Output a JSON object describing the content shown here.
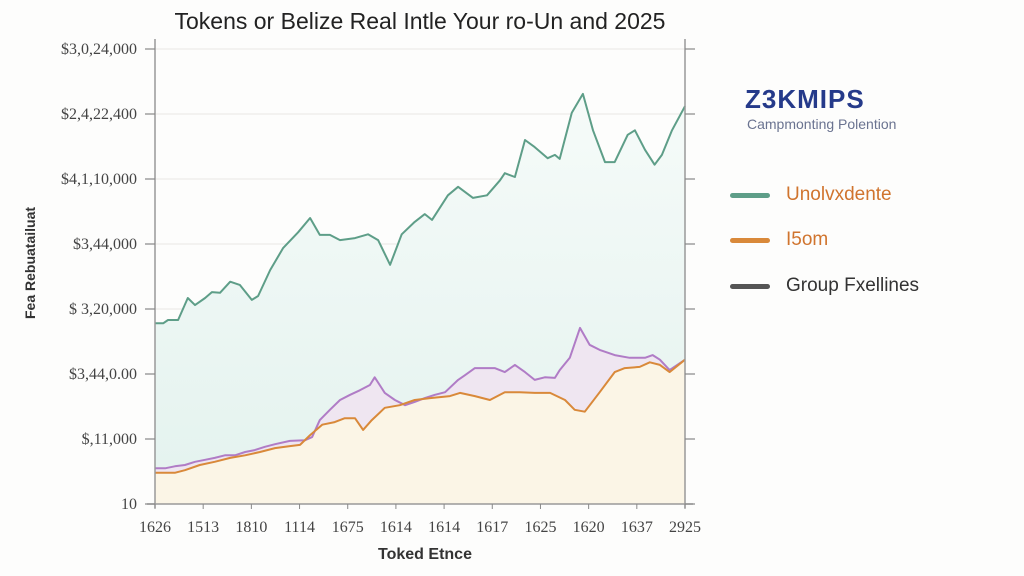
{
  "chart_data": {
    "type": "area",
    "title": "Tokens or Belize Real Intle Your ro-Un and 2025",
    "xlabel": "Toked Etnce",
    "ylabel": "Fea Rebuatailuat",
    "x_tick_labels": [
      "1626",
      "1513",
      "1810",
      "1114",
      "1675",
      "1614",
      "1614",
      "1617",
      "1625",
      "1620",
      "1637",
      "2925"
    ],
    "y_tick_labels": [
      "10",
      "$,11,000",
      "$3,44,0.00",
      "$ 3,20,000",
      "$3,44,000",
      "$4,1,10,000",
      "$2,4,22,400",
      "$3,0,24,000"
    ],
    "xlim": [
      0,
      11
    ],
    "ylim": [
      0,
      7
    ],
    "grid": true,
    "legend_placement": "right",
    "series": [
      {
        "name": "Unolvxdente",
        "color": "#5e9e88",
        "fill": "#e3f2ee",
        "points": [
          [
            0,
            2.78
          ],
          [
            0.17,
            2.78
          ],
          [
            0.27,
            2.83
          ],
          [
            0.48,
            2.83
          ],
          [
            0.68,
            3.17
          ],
          [
            0.83,
            3.06
          ],
          [
            1.04,
            3.17
          ],
          [
            1.18,
            3.26
          ],
          [
            1.35,
            3.25
          ],
          [
            1.56,
            3.42
          ],
          [
            1.76,
            3.37
          ],
          [
            2.01,
            3.14
          ],
          [
            2.14,
            3.2
          ],
          [
            2.39,
            3.6
          ],
          [
            2.66,
            3.94
          ],
          [
            2.97,
            4.18
          ],
          [
            3.22,
            4.4
          ],
          [
            3.42,
            4.14
          ],
          [
            3.63,
            4.14
          ],
          [
            3.84,
            4.06
          ],
          [
            4.15,
            4.09
          ],
          [
            4.42,
            4.15
          ],
          [
            4.63,
            4.06
          ],
          [
            4.88,
            3.68
          ],
          [
            5.12,
            4.15
          ],
          [
            5.39,
            4.34
          ],
          [
            5.6,
            4.46
          ],
          [
            5.75,
            4.37
          ],
          [
            6.08,
            4.75
          ],
          [
            6.29,
            4.88
          ],
          [
            6.6,
            4.71
          ],
          [
            6.89,
            4.75
          ],
          [
            7.16,
            4.98
          ],
          [
            7.26,
            5.09
          ],
          [
            7.47,
            5.03
          ],
          [
            7.68,
            5.6
          ],
          [
            7.88,
            5.49
          ],
          [
            8.15,
            5.32
          ],
          [
            8.3,
            5.37
          ],
          [
            8.4,
            5.31
          ],
          [
            8.65,
            6.02
          ],
          [
            8.88,
            6.31
          ],
          [
            9.09,
            5.75
          ],
          [
            9.34,
            5.26
          ],
          [
            9.54,
            5.26
          ],
          [
            9.81,
            5.68
          ],
          [
            9.96,
            5.75
          ],
          [
            10.17,
            5.45
          ],
          [
            10.37,
            5.22
          ],
          [
            10.52,
            5.37
          ],
          [
            10.73,
            5.75
          ],
          [
            11,
            6.12
          ]
        ]
      },
      {
        "name": "I5om",
        "color": "#d9893a",
        "fill": "#fbf5e6",
        "points": [
          [
            0,
            0.48
          ],
          [
            0.41,
            0.48
          ],
          [
            0.62,
            0.52
          ],
          [
            0.93,
            0.6
          ],
          [
            1.24,
            0.65
          ],
          [
            1.56,
            0.71
          ],
          [
            1.87,
            0.75
          ],
          [
            2.18,
            0.8
          ],
          [
            2.49,
            0.86
          ],
          [
            2.8,
            0.89
          ],
          [
            3.01,
            0.91
          ],
          [
            3.22,
            1.06
          ],
          [
            3.47,
            1.22
          ],
          [
            3.73,
            1.26
          ],
          [
            3.94,
            1.32
          ],
          [
            4.15,
            1.32
          ],
          [
            4.32,
            1.14
          ],
          [
            4.5,
            1.29
          ],
          [
            4.77,
            1.48
          ],
          [
            5.08,
            1.52
          ],
          [
            5.39,
            1.6
          ],
          [
            5.71,
            1.63
          ],
          [
            6.12,
            1.66
          ],
          [
            6.33,
            1.71
          ],
          [
            6.64,
            1.66
          ],
          [
            6.95,
            1.6
          ],
          [
            7.26,
            1.72
          ],
          [
            7.57,
            1.72
          ],
          [
            7.88,
            1.71
          ],
          [
            8.2,
            1.71
          ],
          [
            8.51,
            1.6
          ],
          [
            8.71,
            1.45
          ],
          [
            8.92,
            1.42
          ],
          [
            9.23,
            1.72
          ],
          [
            9.54,
            2.03
          ],
          [
            9.75,
            2.09
          ],
          [
            10.06,
            2.11
          ],
          [
            10.27,
            2.18
          ],
          [
            10.48,
            2.14
          ],
          [
            10.68,
            2.03
          ],
          [
            11,
            2.22
          ]
        ]
      },
      {
        "color": "#b07cc6",
        "fill": "#efe6f1",
        "points": [
          [
            0,
            0.55
          ],
          [
            0.21,
            0.55
          ],
          [
            0.41,
            0.58
          ],
          [
            0.62,
            0.6
          ],
          [
            0.83,
            0.65
          ],
          [
            1.04,
            0.68
          ],
          [
            1.24,
            0.71
          ],
          [
            1.45,
            0.75
          ],
          [
            1.66,
            0.75
          ],
          [
            1.87,
            0.8
          ],
          [
            2.07,
            0.83
          ],
          [
            2.28,
            0.88
          ],
          [
            2.49,
            0.92
          ],
          [
            2.8,
            0.97
          ],
          [
            3.11,
            0.98
          ],
          [
            3.26,
            1.03
          ],
          [
            3.42,
            1.29
          ],
          [
            3.63,
            1.45
          ],
          [
            3.84,
            1.6
          ],
          [
            4.05,
            1.68
          ],
          [
            4.25,
            1.75
          ],
          [
            4.46,
            1.83
          ],
          [
            4.56,
            1.95
          ],
          [
            4.77,
            1.71
          ],
          [
            4.98,
            1.6
          ],
          [
            5.19,
            1.52
          ],
          [
            5.39,
            1.57
          ],
          [
            5.6,
            1.63
          ],
          [
            5.81,
            1.68
          ],
          [
            6.02,
            1.72
          ],
          [
            6.29,
            1.91
          ],
          [
            6.43,
            1.98
          ],
          [
            6.64,
            2.09
          ],
          [
            6.85,
            2.09
          ],
          [
            7.05,
            2.09
          ],
          [
            7.26,
            2.03
          ],
          [
            7.47,
            2.14
          ],
          [
            7.68,
            2.03
          ],
          [
            7.88,
            1.91
          ],
          [
            8.09,
            1.95
          ],
          [
            8.3,
            1.94
          ],
          [
            8.4,
            2.06
          ],
          [
            8.61,
            2.25
          ],
          [
            8.82,
            2.71
          ],
          [
            9.02,
            2.45
          ],
          [
            9.23,
            2.37
          ],
          [
            9.54,
            2.29
          ],
          [
            9.85,
            2.25
          ],
          [
            10.17,
            2.25
          ],
          [
            10.33,
            2.29
          ],
          [
            10.48,
            2.22
          ],
          [
            10.68,
            2.06
          ],
          [
            11,
            2.22
          ]
        ]
      }
    ],
    "legend": [
      {
        "label": "Unolvxdente",
        "color": "#5e9e88",
        "text_color": "#d0742e"
      },
      {
        "label": "I5om",
        "color": "#d9893a",
        "text_color": "#d0742e"
      },
      {
        "label": "Group Fxellines",
        "color": "#555555",
        "text_color": "#333333"
      }
    ]
  },
  "logo": {
    "text": "Z3KMIPS",
    "subtitle": "Campmonting Polention",
    "color": "#253a8a"
  }
}
